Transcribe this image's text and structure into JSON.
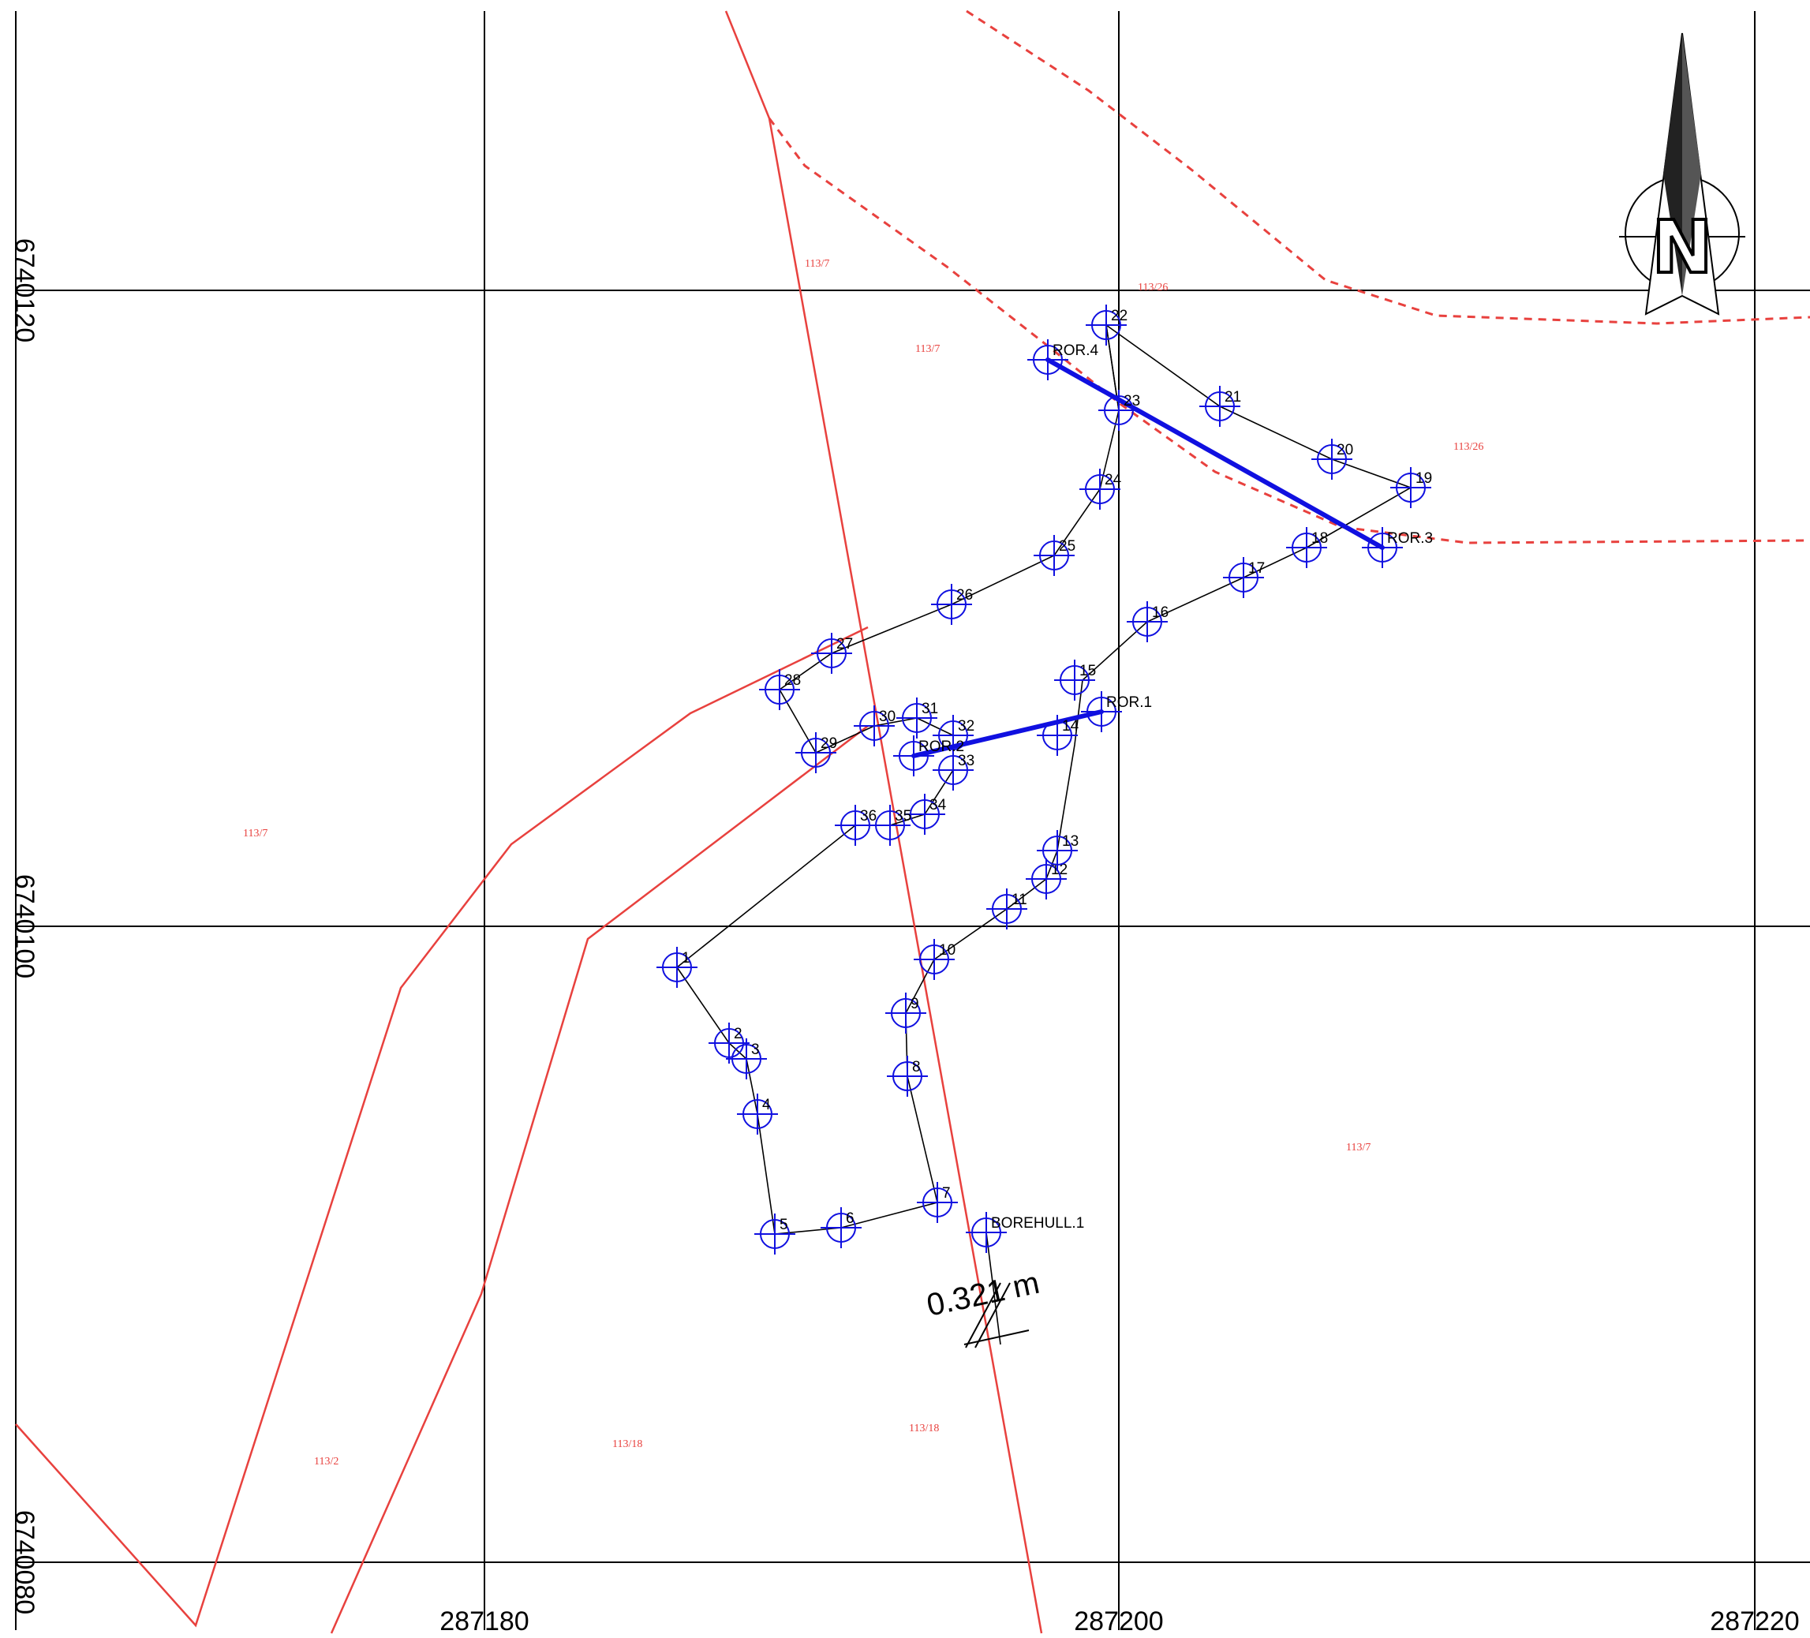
{
  "grid": {
    "x_labels": [
      "287180",
      "287200",
      "287220"
    ],
    "y_labels": [
      "6740120",
      "6740100",
      "6740080"
    ]
  },
  "north_arrow": {
    "letter": "N",
    "icon": "north-arrow-icon"
  },
  "parcels": [
    "113/7",
    "113/26",
    "113/7",
    "113/26",
    "113/7",
    "113/7",
    "113/2",
    "113/18",
    "113/18"
  ],
  "points": [
    "1",
    "2",
    "3",
    "4",
    "5",
    "6",
    "7",
    "8",
    "9",
    "10",
    "11",
    "12",
    "13",
    "14",
    "15",
    "16",
    "17",
    "18",
    "19",
    "20",
    "21",
    "22",
    "23",
    "24",
    "25",
    "26",
    "27",
    "28",
    "29",
    "30",
    "31",
    "32",
    "33",
    "34",
    "35",
    "36",
    "ROR.1",
    "ROR.2",
    "ROR.3",
    "ROR.4",
    "BOREHULL.1"
  ],
  "measurement": "0.321 m",
  "colors": {
    "parcel": "#e8413e",
    "pipe": "#1010e0",
    "grid": "#000000"
  }
}
